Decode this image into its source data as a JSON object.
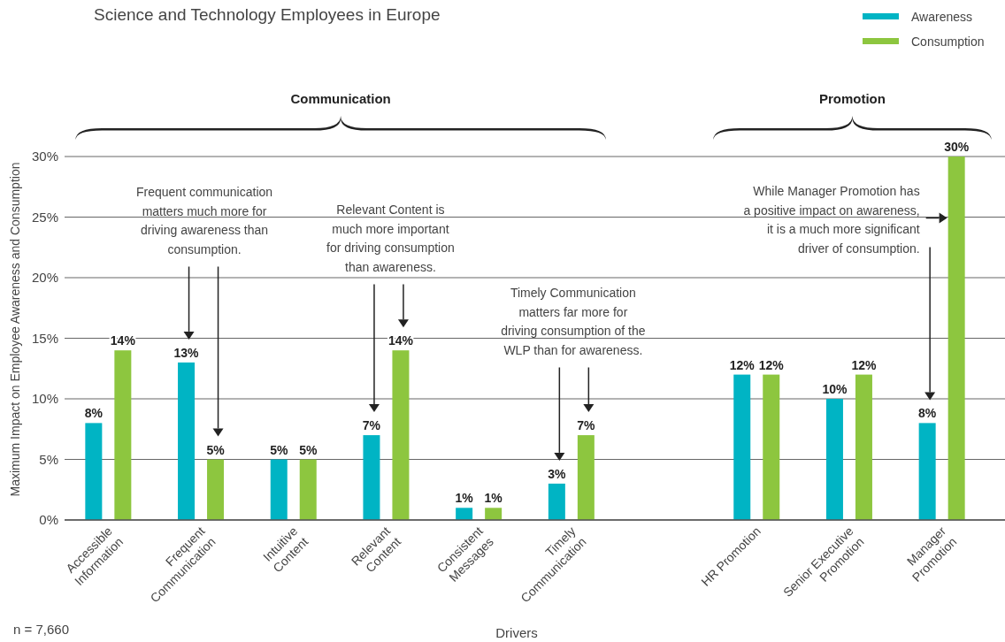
{
  "chart_data": {
    "type": "bar",
    "title": "Science and Technology Employees in Europe",
    "xlabel": "Drivers",
    "ylabel": "Maximum Impact on Employee Awareness and Consumption",
    "categories": [
      "Accessible Information",
      "Frequent Communication",
      "Intuitive Content",
      "Relevant Content",
      "Consistent Messages",
      "Timely Communication",
      null,
      "HR Promotion",
      "Senior Executive Promotion",
      "Manager Promotion"
    ],
    "series": [
      {
        "name": "Awareness",
        "color": "#00b4c4",
        "values": [
          8,
          13,
          5,
          7,
          1,
          3,
          null,
          12,
          10,
          8
        ],
        "value_labels": [
          "8%",
          "13%",
          "5%",
          "7%",
          "1%",
          "3%",
          null,
          "12%",
          "10%",
          "8%"
        ]
      },
      {
        "name": "Consumption",
        "color": "#8dc63f",
        "values": [
          14,
          5,
          5,
          14,
          1,
          7,
          null,
          12,
          12,
          30
        ],
        "value_labels": [
          "14%",
          "5%",
          "5%",
          "14%",
          "1%",
          "7%",
          null,
          "12%",
          "12%",
          "30%"
        ]
      }
    ],
    "ylim": [
      0,
      30
    ],
    "yticks": [
      {
        "value": 0,
        "label": "0%"
      },
      {
        "value": 5,
        "label": "5%"
      },
      {
        "value": 10,
        "label": "10%"
      },
      {
        "value": 15,
        "label": "15%"
      },
      {
        "value": 20,
        "label": "20%"
      },
      {
        "value": 25,
        "label": "25%"
      },
      {
        "value": 30,
        "label": "30%"
      }
    ],
    "grid": "y",
    "legend": "top right",
    "annotations": [
      "Communication",
      "Promotion",
      "Frequent communication matters much more for driving awareness than consumption.",
      "Relevant Content is much more important for driving consumption than awareness.",
      "Timely Communication matters far more for driving consumption of the WLP than for awareness.",
      "While Manager Promotion has a positive impact on awareness, it is a much more significant driver of consumption.",
      "n = 7,660"
    ]
  }
}
